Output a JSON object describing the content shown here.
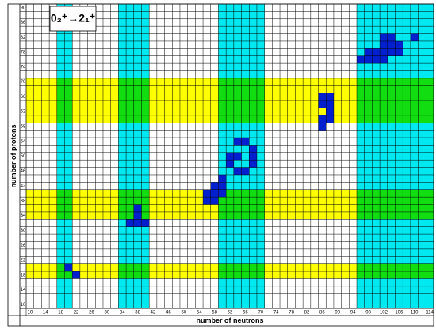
{
  "chart_data": {
    "type": "nuclide-grid",
    "title": "0₂⁺→2₁⁺",
    "x_label": "number of neutrons",
    "y_label": "number of protons",
    "xlim": [
      9,
      115
    ],
    "ylim": [
      9,
      91
    ],
    "xticks": [
      10,
      14,
      18,
      22,
      26,
      30,
      34,
      38,
      42,
      46,
      50,
      54,
      58,
      62,
      66,
      70,
      74,
      78,
      82,
      86,
      90,
      94,
      98,
      102,
      106,
      110,
      114
    ],
    "yticks": [
      10,
      14,
      18,
      22,
      26,
      30,
      34,
      38,
      42,
      46,
      50,
      54,
      58,
      62,
      66,
      70,
      74,
      78,
      82,
      86,
      90
    ],
    "neutron_shells": {
      "color": "#00e8f0",
      "ranges": [
        [
          18,
          20
        ],
        [
          34,
          40
        ],
        [
          60,
          70
        ],
        [
          96,
          114
        ]
      ]
    },
    "proton_shells": {
      "color": "#ffff00",
      "ranges": [
        [
          60,
          70
        ],
        [
          34,
          40
        ],
        [
          18,
          20
        ]
      ]
    },
    "overlap_color": "#11dd11",
    "points": {
      "color": "#0020d0",
      "x": [
        20,
        22,
        38,
        38,
        36,
        38,
        40,
        60,
        58,
        60,
        56,
        58,
        60,
        56,
        58,
        64,
        66,
        68,
        62,
        64,
        68,
        62,
        68,
        64,
        66,
        86,
        88,
        86,
        88,
        88,
        86,
        88,
        86,
        102,
        104,
        110,
        102,
        104,
        106,
        98,
        100,
        102,
        104,
        106,
        96,
        98,
        100,
        102
      ],
      "y": [
        20,
        18,
        36,
        34,
        32,
        32,
        32,
        44,
        42,
        42,
        40,
        40,
        40,
        38,
        38,
        54,
        54,
        52,
        50,
        50,
        50,
        48,
        48,
        46,
        46,
        66,
        66,
        64,
        64,
        62,
        60,
        60,
        58,
        82,
        82,
        82,
        80,
        80,
        80,
        78,
        78,
        78,
        78,
        78,
        76,
        76,
        76,
        76
      ]
    }
  }
}
